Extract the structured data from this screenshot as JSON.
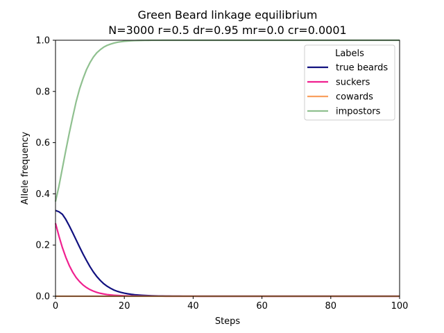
{
  "chart_data": {
    "type": "line",
    "title": "Green Beard linkage equilibrium",
    "subtitle": "N=3000 r=0.5 dr=0.95 mr=0.0 cr=0.0001",
    "xlabel": "Steps",
    "ylabel": "Allele frequency",
    "xlim": [
      0,
      100
    ],
    "ylim": [
      0,
      1.0
    ],
    "xticks": [
      0,
      20,
      40,
      60,
      80,
      100
    ],
    "yticks": [
      0.0,
      0.2,
      0.4,
      0.6,
      0.8,
      1.0
    ],
    "xtick_labels": [
      "0",
      "20",
      "40",
      "60",
      "80",
      "100"
    ],
    "ytick_labels": [
      "0.0",
      "0.2",
      "0.4",
      "0.6",
      "0.8",
      "1.0"
    ],
    "legend_title": "Labels",
    "legend_position": "top-right",
    "grid": false,
    "x": [
      0,
      1,
      2,
      3,
      4,
      5,
      6,
      7,
      8,
      9,
      10,
      11,
      12,
      13,
      14,
      15,
      16,
      17,
      18,
      19,
      20,
      21,
      22,
      23,
      24,
      25,
      26,
      27,
      28,
      29,
      30,
      31,
      32,
      33,
      34,
      35,
      36,
      37,
      38,
      39,
      40,
      42,
      44,
      46,
      48,
      50,
      55,
      60,
      65,
      70,
      75,
      80,
      85,
      90,
      95,
      100
    ],
    "series": [
      {
        "name": "true beards",
        "color": "#10107f",
        "values": [
          0.335,
          0.33,
          0.32,
          0.3,
          0.275,
          0.248,
          0.22,
          0.192,
          0.165,
          0.14,
          0.116,
          0.095,
          0.077,
          0.062,
          0.049,
          0.039,
          0.031,
          0.024,
          0.019,
          0.015,
          0.012,
          0.0095,
          0.0075,
          0.006,
          0.0048,
          0.0038,
          0.003,
          0.0024,
          0.0019,
          0.0015,
          0.0012,
          0.001,
          0.0008,
          0.0006,
          0.0005,
          0.0004,
          0.0003,
          0.0002,
          0.0002,
          0.0001,
          0.0001,
          0,
          0,
          0,
          0,
          0,
          0,
          0,
          0,
          0,
          0,
          0,
          0,
          0,
          0,
          0
        ]
      },
      {
        "name": "suckers",
        "color": "#f0208f",
        "values": [
          0.285,
          0.235,
          0.19,
          0.152,
          0.12,
          0.094,
          0.073,
          0.057,
          0.044,
          0.034,
          0.026,
          0.02,
          0.015,
          0.0115,
          0.0088,
          0.0067,
          0.0051,
          0.0039,
          0.003,
          0.0023,
          0.0017,
          0.0013,
          0.001,
          0.0008,
          0.0006,
          0.0005,
          0.0004,
          0.0003,
          0.0002,
          0.0002,
          0.0001,
          0.0001,
          0,
          0,
          0,
          0,
          0,
          0,
          0,
          0,
          0,
          0,
          0,
          0,
          0,
          0,
          0,
          0,
          0,
          0,
          0,
          0,
          0,
          0,
          0,
          0
        ]
      },
      {
        "name": "cowards",
        "color": "#f9a05f",
        "values": [
          0,
          0,
          0,
          0,
          0,
          0,
          0,
          0,
          0,
          0,
          0,
          0,
          0,
          0,
          0,
          0,
          0,
          0,
          0,
          0,
          0,
          0,
          0,
          0,
          0,
          0,
          0,
          0,
          0,
          0,
          0,
          0,
          0,
          0,
          0,
          0,
          0,
          0,
          0,
          0,
          0,
          0,
          0,
          0,
          0,
          0,
          0,
          0,
          0,
          0,
          0,
          0,
          0,
          0,
          0,
          0
        ]
      },
      {
        "name": "impostors",
        "color": "#8fc08f",
        "values": [
          0.37,
          0.43,
          0.5,
          0.57,
          0.637,
          0.7,
          0.76,
          0.81,
          0.85,
          0.885,
          0.912,
          0.934,
          0.951,
          0.963,
          0.973,
          0.98,
          0.985,
          0.989,
          0.992,
          0.994,
          0.996,
          0.997,
          0.998,
          0.9985,
          0.999,
          0.9993,
          0.9995,
          0.9997,
          0.9998,
          0.9998,
          0.9999,
          1,
          1,
          1,
          1,
          1,
          1,
          1,
          1,
          1,
          1,
          1,
          1,
          1,
          1,
          1,
          1,
          1,
          1,
          1,
          1,
          1,
          1,
          1,
          1,
          1
        ]
      }
    ]
  }
}
